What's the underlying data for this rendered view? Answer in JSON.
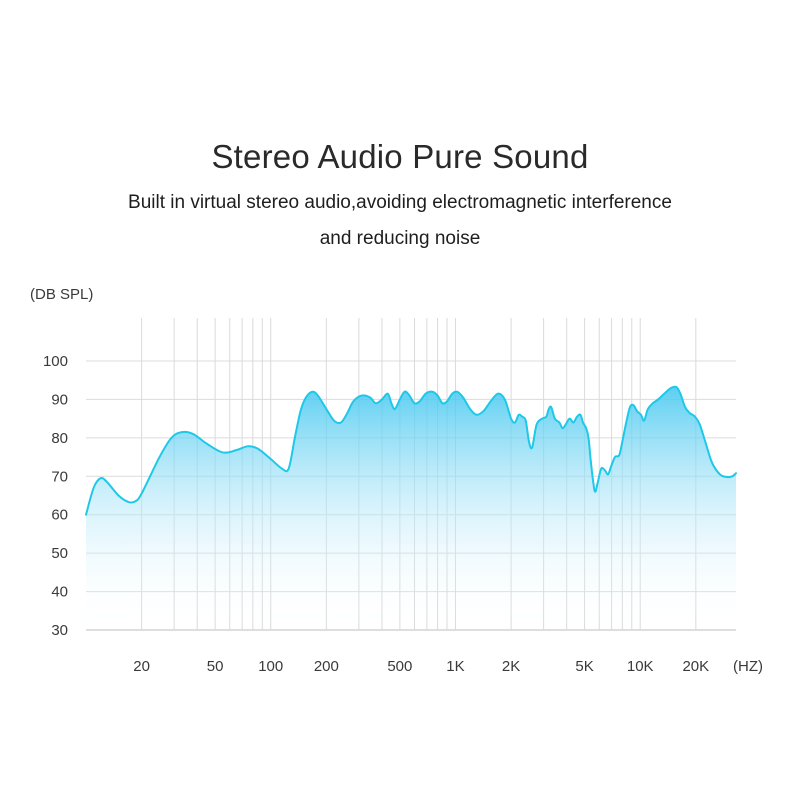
{
  "header": {
    "title": "Stereo Audio Pure Sound",
    "subtitle_line1": "Built in virtual stereo audio,avoiding electromagnetic interference",
    "subtitle_line2": "and reducing noise"
  },
  "chart_data": {
    "type": "area",
    "title": "Stereo Audio Pure Sound",
    "ylabel": "(DB SPL)",
    "xlabel": "(HZ)",
    "x_scale": "log",
    "xlim": [
      10,
      33000
    ],
    "ylim": [
      30,
      100
    ],
    "y_ticks": [
      30,
      40,
      50,
      60,
      70,
      80,
      90,
      100
    ],
    "x_ticks": [
      {
        "value": 20,
        "label": "20"
      },
      {
        "value": 50,
        "label": "50"
      },
      {
        "value": 100,
        "label": "100"
      },
      {
        "value": 200,
        "label": "200"
      },
      {
        "value": 500,
        "label": "500"
      },
      {
        "value": 1000,
        "label": "1K"
      },
      {
        "value": 2000,
        "label": "2K"
      },
      {
        "value": 5000,
        "label": "5K"
      },
      {
        "value": 10000,
        "label": "10K"
      },
      {
        "value": 20000,
        "label": "20K"
      }
    ],
    "grid_x": [
      20,
      30,
      40,
      50,
      60,
      70,
      80,
      90,
      100,
      200,
      300,
      400,
      500,
      600,
      700,
      800,
      900,
      1000,
      2000,
      3000,
      4000,
      5000,
      6000,
      7000,
      8000,
      9000,
      10000,
      20000
    ],
    "grid": true,
    "series": [
      {
        "color": "#1ec8e8",
        "points": [
          [
            10,
            60
          ],
          [
            11,
            67
          ],
          [
            12,
            69.5
          ],
          [
            13,
            68.5
          ],
          [
            15,
            65
          ],
          [
            17,
            63.3
          ],
          [
            18.5,
            63.5
          ],
          [
            20,
            65.5
          ],
          [
            25,
            75
          ],
          [
            29,
            80
          ],
          [
            33,
            81.5
          ],
          [
            38,
            81
          ],
          [
            45,
            78.5
          ],
          [
            55,
            76.2
          ],
          [
            65,
            76.8
          ],
          [
            75,
            77.8
          ],
          [
            85,
            77.2
          ],
          [
            100,
            74.5
          ],
          [
            115,
            72
          ],
          [
            125,
            72
          ],
          [
            135,
            80
          ],
          [
            145,
            87
          ],
          [
            155,
            90.5
          ],
          [
            168,
            92
          ],
          [
            180,
            91
          ],
          [
            200,
            87.5
          ],
          [
            220,
            84.5
          ],
          [
            240,
            84
          ],
          [
            260,
            86.5
          ],
          [
            280,
            89.5
          ],
          [
            310,
            91
          ],
          [
            345,
            90.5
          ],
          [
            370,
            89
          ],
          [
            400,
            90
          ],
          [
            430,
            91.5
          ],
          [
            450,
            89
          ],
          [
            470,
            87.5
          ],
          [
            500,
            90
          ],
          [
            530,
            92
          ],
          [
            560,
            91.2
          ],
          [
            600,
            89
          ],
          [
            640,
            89.5
          ],
          [
            690,
            91.5
          ],
          [
            750,
            92
          ],
          [
            800,
            91
          ],
          [
            850,
            89
          ],
          [
            900,
            89.5
          ],
          [
            960,
            91.5
          ],
          [
            1020,
            92
          ],
          [
            1100,
            90.5
          ],
          [
            1200,
            87.5
          ],
          [
            1300,
            86
          ],
          [
            1420,
            87
          ],
          [
            1550,
            89.5
          ],
          [
            1700,
            91.5
          ],
          [
            1850,
            90
          ],
          [
            2000,
            85
          ],
          [
            2100,
            84
          ],
          [
            2200,
            86
          ],
          [
            2300,
            85.5
          ],
          [
            2400,
            84.5
          ],
          [
            2500,
            79
          ],
          [
            2600,
            77.5
          ],
          [
            2750,
            83.5
          ],
          [
            2950,
            85
          ],
          [
            3100,
            85.5
          ],
          [
            3200,
            87.5
          ],
          [
            3300,
            88
          ],
          [
            3450,
            85
          ],
          [
            3650,
            84
          ],
          [
            3800,
            82.5
          ],
          [
            3950,
            83.5
          ],
          [
            4150,
            85
          ],
          [
            4350,
            84
          ],
          [
            4550,
            85.5
          ],
          [
            4750,
            86
          ],
          [
            4900,
            84
          ],
          [
            5100,
            82.5
          ],
          [
            5250,
            80
          ],
          [
            5400,
            74
          ],
          [
            5550,
            69
          ],
          [
            5700,
            66
          ],
          [
            5900,
            68.5
          ],
          [
            6150,
            72
          ],
          [
            6450,
            71.5
          ],
          [
            6700,
            70.5
          ],
          [
            6950,
            72.5
          ],
          [
            7300,
            75
          ],
          [
            7700,
            75.5
          ],
          [
            8000,
            79
          ],
          [
            8400,
            84
          ],
          [
            8800,
            88
          ],
          [
            9200,
            88.5
          ],
          [
            9600,
            87
          ],
          [
            10100,
            86
          ],
          [
            10500,
            84.5
          ],
          [
            11000,
            87.5
          ],
          [
            11700,
            89
          ],
          [
            12500,
            90
          ],
          [
            13500,
            91.5
          ],
          [
            14700,
            93
          ],
          [
            15700,
            93.2
          ],
          [
            16500,
            91.5
          ],
          [
            17500,
            88
          ],
          [
            18500,
            86.5
          ],
          [
            19800,
            85.5
          ],
          [
            21000,
            83.5
          ],
          [
            22500,
            79
          ],
          [
            24500,
            73.5
          ],
          [
            27000,
            70.5
          ],
          [
            29500,
            69.8
          ],
          [
            31500,
            70
          ],
          [
            33000,
            70.8
          ]
        ]
      }
    ]
  }
}
